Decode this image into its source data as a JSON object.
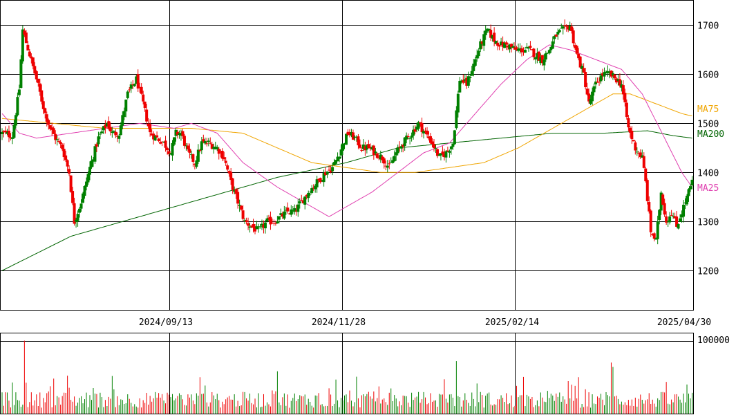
{
  "chart_data": [
    {
      "type": "candlestick",
      "ylim": [
        1120,
        1750
      ],
      "yticks": [
        "1700",
        "1600",
        "1500",
        "1400",
        "1300",
        "1200"
      ],
      "xtick_labels": [
        "2024/09/13",
        "2024/11/28",
        "2025/02/14",
        "2025/04/30"
      ],
      "grid": true,
      "legend": [
        "MA75",
        "MA200",
        "MA25"
      ],
      "colors": {
        "up": "#008000",
        "down": "#ee0000",
        "ma25": "#e040b0",
        "ma75": "#f0a500",
        "ma200": "#006400"
      },
      "anchors": [
        [
          0,
          1480
        ],
        [
          6,
          1475
        ],
        [
          10,
          1570
        ],
        [
          12,
          1690
        ],
        [
          16,
          1640
        ],
        [
          20,
          1590
        ],
        [
          25,
          1520
        ],
        [
          28,
          1490
        ],
        [
          31,
          1470
        ],
        [
          35,
          1450
        ],
        [
          39,
          1400
        ],
        [
          42,
          1300
        ],
        [
          46,
          1340
        ],
        [
          51,
          1410
        ],
        [
          56,
          1470
        ],
        [
          61,
          1500
        ],
        [
          64,
          1480
        ],
        [
          68,
          1480
        ],
        [
          73,
          1560
        ],
        [
          78,
          1590
        ],
        [
          82,
          1540
        ],
        [
          86,
          1480
        ],
        [
          90,
          1470
        ],
        [
          94,
          1460
        ],
        [
          98,
          1440
        ],
        [
          101,
          1480
        ],
        [
          104,
          1480
        ],
        [
          108,
          1440
        ],
        [
          112,
          1420
        ],
        [
          116,
          1460
        ],
        [
          120,
          1460
        ],
        [
          125,
          1450
        ],
        [
          129,
          1430
        ],
        [
          133,
          1380
        ],
        [
          137,
          1340
        ],
        [
          141,
          1300
        ],
        [
          145,
          1290
        ],
        [
          149,
          1280
        ],
        [
          154,
          1300
        ],
        [
          158,
          1300
        ],
        [
          162,
          1310
        ],
        [
          166,
          1320
        ],
        [
          170,
          1320
        ],
        [
          174,
          1340
        ],
        [
          178,
          1360
        ],
        [
          183,
          1380
        ],
        [
          188,
          1400
        ],
        [
          192,
          1410
        ],
        [
          196,
          1440
        ],
        [
          201,
          1480
        ],
        [
          205,
          1470
        ],
        [
          209,
          1450
        ],
        [
          213,
          1450
        ],
        [
          217,
          1440
        ],
        [
          221,
          1430
        ],
        [
          225,
          1410
        ],
        [
          229,
          1440
        ],
        [
          233,
          1460
        ],
        [
          238,
          1480
        ],
        [
          242,
          1500
        ],
        [
          246,
          1480
        ],
        [
          250,
          1460
        ],
        [
          254,
          1430
        ],
        [
          258,
          1440
        ],
        [
          262,
          1460
        ],
        [
          266,
          1590
        ],
        [
          270,
          1580
        ],
        [
          274,
          1620
        ],
        [
          278,
          1660
        ],
        [
          282,
          1690
        ],
        [
          286,
          1670
        ],
        [
          290,
          1660
        ],
        [
          294,
          1660
        ],
        [
          298,
          1650
        ],
        [
          302,
          1650
        ],
        [
          306,
          1650
        ],
        [
          310,
          1640
        ],
        [
          314,
          1630
        ],
        [
          318,
          1650
        ],
        [
          322,
          1680
        ],
        [
          326,
          1690
        ],
        [
          330,
          1700
        ],
        [
          334,
          1640
        ],
        [
          338,
          1600
        ],
        [
          341,
          1540
        ],
        [
          345,
          1580
        ],
        [
          349,
          1600
        ],
        [
          353,
          1600
        ],
        [
          357,
          1590
        ],
        [
          360,
          1580
        ],
        [
          364,
          1490
        ],
        [
          368,
          1450
        ],
        [
          372,
          1430
        ],
        [
          374,
          1380
        ],
        [
          377,
          1280
        ],
        [
          380,
          1260
        ],
        [
          383,
          1360
        ],
        [
          386,
          1300
        ],
        [
          389,
          1320
        ],
        [
          392,
          1290
        ],
        [
          395,
          1320
        ],
        [
          398,
          1350
        ],
        [
          401,
          1380
        ]
      ],
      "ma25": [
        [
          0,
          1520
        ],
        [
          10,
          1480
        ],
        [
          20,
          1470
        ],
        [
          40,
          1480
        ],
        [
          60,
          1490
        ],
        [
          80,
          1500
        ],
        [
          100,
          1490
        ],
        [
          110,
          1500
        ],
        [
          125,
          1480
        ],
        [
          140,
          1420
        ],
        [
          160,
          1370
        ],
        [
          180,
          1330
        ],
        [
          190,
          1310
        ],
        [
          200,
          1330
        ],
        [
          215,
          1360
        ],
        [
          230,
          1400
        ],
        [
          245,
          1440
        ],
        [
          260,
          1460
        ],
        [
          275,
          1520
        ],
        [
          290,
          1580
        ],
        [
          305,
          1630
        ],
        [
          318,
          1660
        ],
        [
          330,
          1650
        ],
        [
          345,
          1630
        ],
        [
          360,
          1610
        ],
        [
          372,
          1560
        ],
        [
          385,
          1470
        ],
        [
          395,
          1400
        ],
        [
          401,
          1370
        ]
      ],
      "ma75": [
        [
          0,
          1510
        ],
        [
          30,
          1500
        ],
        [
          60,
          1490
        ],
        [
          90,
          1490
        ],
        [
          110,
          1490
        ],
        [
          140,
          1480
        ],
        [
          160,
          1450
        ],
        [
          180,
          1420
        ],
        [
          200,
          1410
        ],
        [
          220,
          1400
        ],
        [
          240,
          1400
        ],
        [
          260,
          1410
        ],
        [
          280,
          1420
        ],
        [
          300,
          1450
        ],
        [
          320,
          1490
        ],
        [
          340,
          1530
        ],
        [
          355,
          1560
        ],
        [
          365,
          1560
        ],
        [
          380,
          1540
        ],
        [
          395,
          1520
        ],
        [
          401,
          1515
        ]
      ],
      "ma200": [
        [
          0,
          1200
        ],
        [
          40,
          1270
        ],
        [
          80,
          1310
        ],
        [
          120,
          1350
        ],
        [
          160,
          1390
        ],
        [
          200,
          1420
        ],
        [
          230,
          1450
        ],
        [
          260,
          1460
        ],
        [
          290,
          1470
        ],
        [
          320,
          1480
        ],
        [
          350,
          1480
        ],
        [
          375,
          1485
        ],
        [
          390,
          1475
        ],
        [
          401,
          1470
        ]
      ]
    },
    {
      "type": "bar",
      "title": "",
      "ylim": [
        0,
        110000
      ],
      "yticks": [
        "100000"
      ],
      "peaks": [
        [
          13,
          100000
        ],
        [
          264,
          72000
        ],
        [
          354,
          70000
        ],
        [
          38,
          52000
        ],
        [
          30,
          48000
        ],
        [
          355,
          64000
        ],
        [
          160,
          58000
        ],
        [
          115,
          50000
        ],
        [
          335,
          50000
        ]
      ]
    }
  ]
}
